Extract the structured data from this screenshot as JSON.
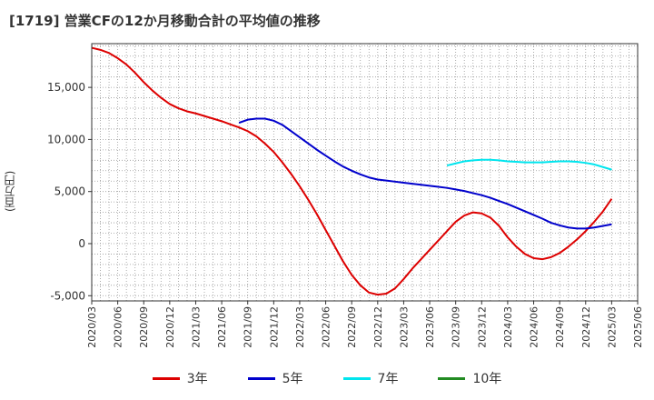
{
  "chart_data": {
    "type": "line",
    "title": "[1719]  営業CFの12か月移動合計の平均値の推移",
    "ylabel": "(百万円)",
    "xlabel": "",
    "ylim": [
      -5500,
      19200
    ],
    "yticks": [
      -5000,
      0,
      5000,
      10000,
      15000
    ],
    "ytick_labels": [
      "-5,000",
      "0",
      "5,000",
      "10,000",
      "15,000"
    ],
    "xtick_labels": [
      "2020/03",
      "2020/06",
      "2020/09",
      "2020/12",
      "2021/03",
      "2021/06",
      "2021/09",
      "2021/12",
      "2022/03",
      "2022/06",
      "2022/09",
      "2022/12",
      "2023/03",
      "2023/06",
      "2023/09",
      "2023/12",
      "2024/03",
      "2024/06",
      "2024/09",
      "2024/12",
      "2025/03",
      "2025/06"
    ],
    "grid": true,
    "legend_position": "bottom",
    "series": [
      {
        "name": "3年",
        "color": "#dd0000",
        "points": [
          [
            "2020/03",
            18800
          ],
          [
            "2020/04",
            18600
          ],
          [
            "2020/05",
            18300
          ],
          [
            "2020/06",
            17800
          ],
          [
            "2020/07",
            17200
          ],
          [
            "2020/08",
            16400
          ],
          [
            "2020/09",
            15500
          ],
          [
            "2020/10",
            14700
          ],
          [
            "2020/11",
            14000
          ],
          [
            "2020/12",
            13400
          ],
          [
            "2021/01",
            13000
          ],
          [
            "2021/02",
            12700
          ],
          [
            "2021/03",
            12500
          ],
          [
            "2021/04",
            12250
          ],
          [
            "2021/05",
            12000
          ],
          [
            "2021/06",
            11750
          ],
          [
            "2021/07",
            11450
          ],
          [
            "2021/08",
            11150
          ],
          [
            "2021/09",
            10800
          ],
          [
            "2021/10",
            10300
          ],
          [
            "2021/11",
            9600
          ],
          [
            "2021/12",
            8800
          ],
          [
            "2022/01",
            7800
          ],
          [
            "2022/02",
            6700
          ],
          [
            "2022/03",
            5500
          ],
          [
            "2022/04",
            4200
          ],
          [
            "2022/05",
            2800
          ],
          [
            "2022/06",
            1300
          ],
          [
            "2022/07",
            -200
          ],
          [
            "2022/08",
            -1700
          ],
          [
            "2022/09",
            -3000
          ],
          [
            "2022/10",
            -4000
          ],
          [
            "2022/11",
            -4700
          ],
          [
            "2022/12",
            -4900
          ],
          [
            "2023/01",
            -4800
          ],
          [
            "2023/02",
            -4300
          ],
          [
            "2023/03",
            -3400
          ],
          [
            "2023/04",
            -2400
          ],
          [
            "2023/05",
            -1500
          ],
          [
            "2023/06",
            -600
          ],
          [
            "2023/07",
            300
          ],
          [
            "2023/08",
            1200
          ],
          [
            "2023/09",
            2100
          ],
          [
            "2023/10",
            2700
          ],
          [
            "2023/11",
            3000
          ],
          [
            "2023/12",
            2900
          ],
          [
            "2024/01",
            2500
          ],
          [
            "2024/02",
            1700
          ],
          [
            "2024/03",
            600
          ],
          [
            "2024/04",
            -300
          ],
          [
            "2024/05",
            -1000
          ],
          [
            "2024/06",
            -1400
          ],
          [
            "2024/07",
            -1500
          ],
          [
            "2024/08",
            -1300
          ],
          [
            "2024/09",
            -900
          ],
          [
            "2024/10",
            -300
          ],
          [
            "2024/11",
            400
          ],
          [
            "2024/12",
            1200
          ],
          [
            "2025/01",
            2100
          ],
          [
            "2025/02",
            3100
          ],
          [
            "2025/03",
            4300
          ]
        ]
      },
      {
        "name": "5年",
        "color": "#0000cc",
        "points": [
          [
            "2021/08",
            11600
          ],
          [
            "2021/09",
            11900
          ],
          [
            "2021/10",
            12000
          ],
          [
            "2021/11",
            12000
          ],
          [
            "2021/12",
            11800
          ],
          [
            "2022/01",
            11400
          ],
          [
            "2022/02",
            10800
          ],
          [
            "2022/03",
            10200
          ],
          [
            "2022/04",
            9600
          ],
          [
            "2022/05",
            9000
          ],
          [
            "2022/06",
            8450
          ],
          [
            "2022/07",
            7900
          ],
          [
            "2022/08",
            7400
          ],
          [
            "2022/09",
            7000
          ],
          [
            "2022/10",
            6650
          ],
          [
            "2022/11",
            6350
          ],
          [
            "2022/12",
            6150
          ],
          [
            "2023/01",
            6050
          ],
          [
            "2023/02",
            5950
          ],
          [
            "2023/03",
            5850
          ],
          [
            "2023/04",
            5750
          ],
          [
            "2023/05",
            5650
          ],
          [
            "2023/06",
            5550
          ],
          [
            "2023/07",
            5450
          ],
          [
            "2023/08",
            5350
          ],
          [
            "2023/09",
            5200
          ],
          [
            "2023/10",
            5050
          ],
          [
            "2023/11",
            4850
          ],
          [
            "2023/12",
            4650
          ],
          [
            "2024/01",
            4400
          ],
          [
            "2024/02",
            4100
          ],
          [
            "2024/03",
            3800
          ],
          [
            "2024/04",
            3450
          ],
          [
            "2024/05",
            3100
          ],
          [
            "2024/06",
            2750
          ],
          [
            "2024/07",
            2400
          ],
          [
            "2024/08",
            2000
          ],
          [
            "2024/09",
            1750
          ],
          [
            "2024/10",
            1550
          ],
          [
            "2024/11",
            1450
          ],
          [
            "2024/12",
            1450
          ],
          [
            "2025/01",
            1550
          ],
          [
            "2025/02",
            1700
          ],
          [
            "2025/03",
            1850
          ]
        ]
      },
      {
        "name": "7年",
        "color": "#00e5ee",
        "points": [
          [
            "2023/08",
            7500
          ],
          [
            "2023/09",
            7700
          ],
          [
            "2023/10",
            7900
          ],
          [
            "2023/11",
            8000
          ],
          [
            "2023/12",
            8050
          ],
          [
            "2024/01",
            8050
          ],
          [
            "2024/02",
            8000
          ],
          [
            "2024/03",
            7900
          ],
          [
            "2024/04",
            7850
          ],
          [
            "2024/05",
            7800
          ],
          [
            "2024/06",
            7800
          ],
          [
            "2024/07",
            7800
          ],
          [
            "2024/08",
            7850
          ],
          [
            "2024/09",
            7900
          ],
          [
            "2024/10",
            7900
          ],
          [
            "2024/11",
            7850
          ],
          [
            "2024/12",
            7750
          ],
          [
            "2025/01",
            7600
          ],
          [
            "2025/02",
            7350
          ],
          [
            "2025/03",
            7100
          ]
        ]
      },
      {
        "name": "10年",
        "color": "#228b22",
        "points": []
      }
    ]
  }
}
